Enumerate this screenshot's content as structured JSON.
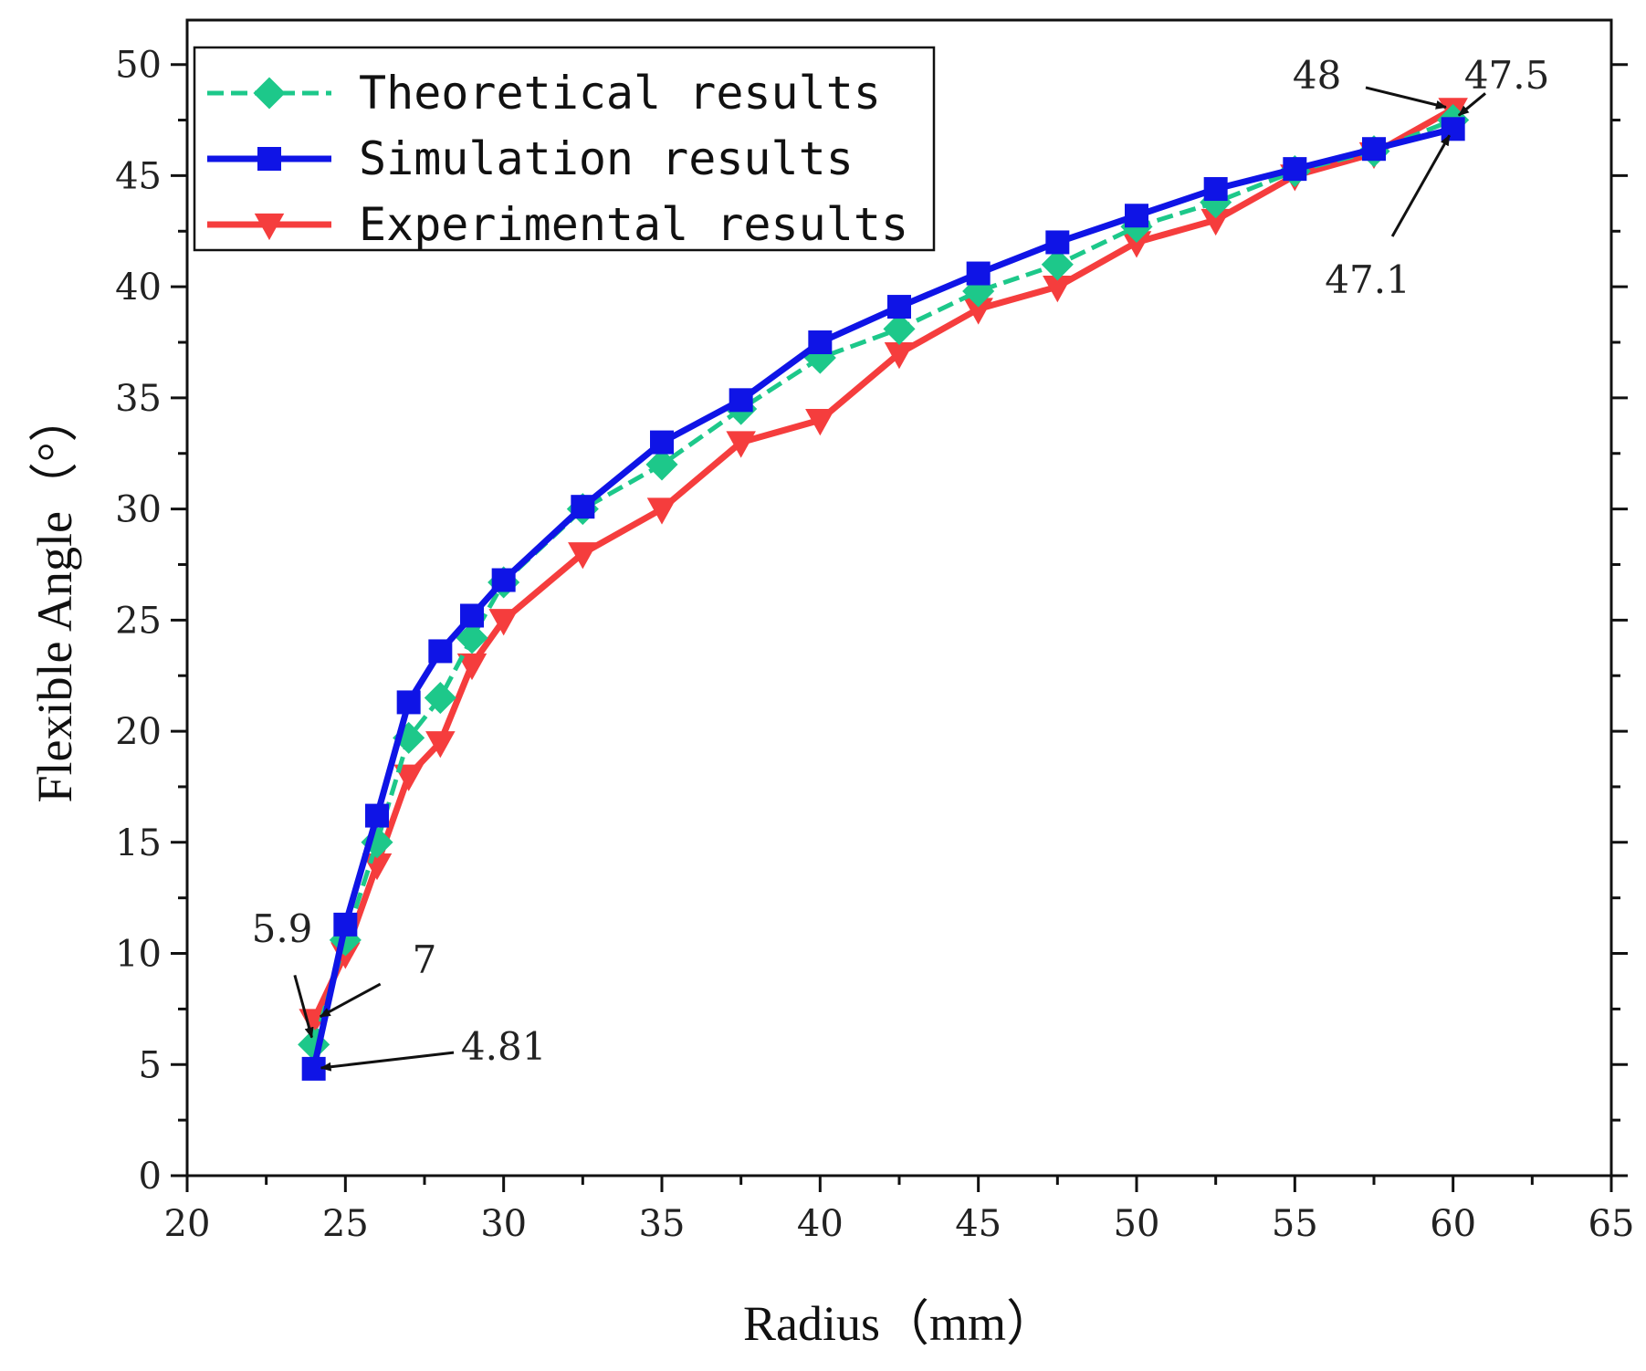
{
  "chart_data": {
    "type": "line",
    "xlabel": "Radius（mm）",
    "ylabel": "Flexible Angle（°）",
    "xlim": [
      20,
      65
    ],
    "ylim": [
      0,
      52
    ],
    "xticks": [
      20,
      25,
      30,
      35,
      40,
      45,
      50,
      55,
      60,
      65
    ],
    "yticks": [
      0,
      5,
      10,
      15,
      20,
      25,
      30,
      35,
      40,
      45,
      50
    ],
    "grid": false,
    "legend_position": "top-left",
    "series": [
      {
        "name": "Theoretical results",
        "color": "#1dc88a",
        "marker": "diamond",
        "dashed": true,
        "x": [
          24,
          25,
          26,
          27,
          28,
          29,
          30,
          32.5,
          35,
          37.5,
          40,
          42.5,
          45,
          47.5,
          50,
          52.5,
          55,
          57.5,
          60
        ],
        "y": [
          5.9,
          10.6,
          15.0,
          19.7,
          21.5,
          24.2,
          26.7,
          30.0,
          32.0,
          34.5,
          36.8,
          38.1,
          39.8,
          41.0,
          42.7,
          43.8,
          45.2,
          46.1,
          47.5
        ]
      },
      {
        "name": "Simulation results",
        "color": "#0f14e6",
        "marker": "square",
        "dashed": false,
        "x": [
          24,
          25,
          26,
          27,
          28,
          29,
          30,
          32.5,
          35,
          37.5,
          40,
          42.5,
          45,
          47.5,
          50,
          52.5,
          55,
          57.5,
          60
        ],
        "y": [
          4.81,
          11.3,
          16.2,
          21.3,
          23.6,
          25.2,
          26.8,
          30.1,
          33.0,
          34.9,
          37.5,
          39.1,
          40.6,
          42.0,
          43.2,
          44.4,
          45.3,
          46.2,
          47.1
        ]
      },
      {
        "name": "Experimental results",
        "color": "#f53d3d",
        "marker": "triangle-down",
        "dashed": false,
        "x": [
          24,
          25,
          26,
          27,
          28,
          29,
          30,
          32.5,
          35,
          37.5,
          40,
          42.5,
          45,
          47.5,
          50,
          52.5,
          55,
          57.5,
          60
        ],
        "y": [
          7.0,
          10.0,
          14.0,
          18.0,
          19.5,
          23.0,
          25.0,
          28.0,
          30.0,
          33.0,
          34.0,
          37.0,
          39.0,
          40.0,
          42.0,
          43.0,
          45.0,
          46.0,
          48.0
        ]
      }
    ],
    "annotations": [
      {
        "text": "5.9",
        "target": [
          24,
          5.9
        ],
        "label_at": [
          23,
          11.1
        ]
      },
      {
        "text": "7",
        "target": [
          24,
          7.0
        ],
        "label_at": [
          27.5,
          9.7
        ]
      },
      {
        "text": "4.81",
        "target": [
          24,
          4.81
        ],
        "label_at": [
          30,
          5.8
        ]
      },
      {
        "text": "48",
        "target": [
          60,
          48
        ],
        "label_at": [
          55.7,
          49.5
        ]
      },
      {
        "text": "47.5",
        "target": [
          60,
          47.5
        ],
        "label_at": [
          61.7,
          49.5
        ]
      },
      {
        "text": "47.1",
        "target": [
          60,
          47.1
        ],
        "label_at": [
          57.3,
          40.3
        ]
      }
    ]
  }
}
